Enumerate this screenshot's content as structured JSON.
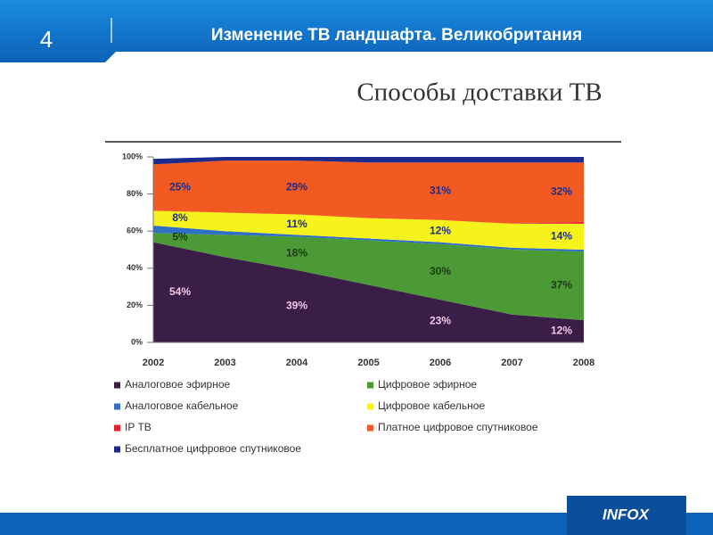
{
  "slide": {
    "number": "4",
    "title": "Изменение ТВ ландшафта. Великобритания",
    "logo": "INFOX"
  },
  "chart_data": {
    "type": "stacked_area",
    "title": "Способы доставки ТВ",
    "categories": [
      "2002",
      "2003",
      "2004",
      "2005",
      "2006",
      "2007",
      "2008"
    ],
    "series": [
      {
        "name": "Аналоговое эфирное",
        "color": "#3b1e48",
        "values": [
          54,
          46,
          39,
          31,
          23,
          15,
          12
        ],
        "value_labels": [
          "54%",
          null,
          "39%",
          null,
          "23%",
          null,
          "12%"
        ]
      },
      {
        "name": "Цифровое эфирное",
        "color": "#4c9a36",
        "values": [
          5,
          12,
          18,
          24,
          30,
          35,
          37
        ],
        "value_labels": [
          "5%",
          null,
          "18%",
          null,
          "30%",
          null,
          "37%"
        ]
      },
      {
        "name": "Аналоговое кабельное",
        "color": "#2f6fc4",
        "values": [
          4,
          2,
          1,
          1,
          1,
          1,
          1
        ]
      },
      {
        "name": "Цифровое кабельное",
        "color": "#f6f21c",
        "values": [
          8,
          10,
          11,
          11,
          12,
          13,
          14
        ],
        "value_labels": [
          "8%",
          null,
          "11%",
          null,
          "12%",
          null,
          "14%"
        ]
      },
      {
        "name": "IP ТВ",
        "color": "#e8202a",
        "values": [
          0,
          0,
          0,
          0,
          0,
          0,
          1
        ]
      },
      {
        "name": "Платное цифровое спутниковое",
        "color": "#f25a22",
        "values": [
          25,
          28,
          29,
          30,
          31,
          33,
          32
        ],
        "value_labels": [
          "25%",
          null,
          "29%",
          null,
          "31%",
          null,
          "32%"
        ]
      },
      {
        "name": "Бесплатное цифровое спутниковое",
        "color": "#1c2c8c",
        "values": [
          3,
          2,
          2,
          3,
          3,
          3,
          3
        ]
      }
    ],
    "ylim": [
      0,
      100
    ],
    "yticks": [
      {
        "value": 0,
        "label": "0%"
      },
      {
        "value": 20,
        "label": "20%"
      },
      {
        "value": 40,
        "label": "40%"
      },
      {
        "value": 60,
        "label": "60%"
      },
      {
        "value": 80,
        "label": "80%"
      },
      {
        "value": 100,
        "label": "100%"
      }
    ],
    "label_colors": [
      "#f2c6e6",
      "#1c3a14",
      "#1c2c8c",
      "#1c2c8c",
      "#e8202a",
      "#1c2c8c",
      "#ffffff"
    ]
  }
}
